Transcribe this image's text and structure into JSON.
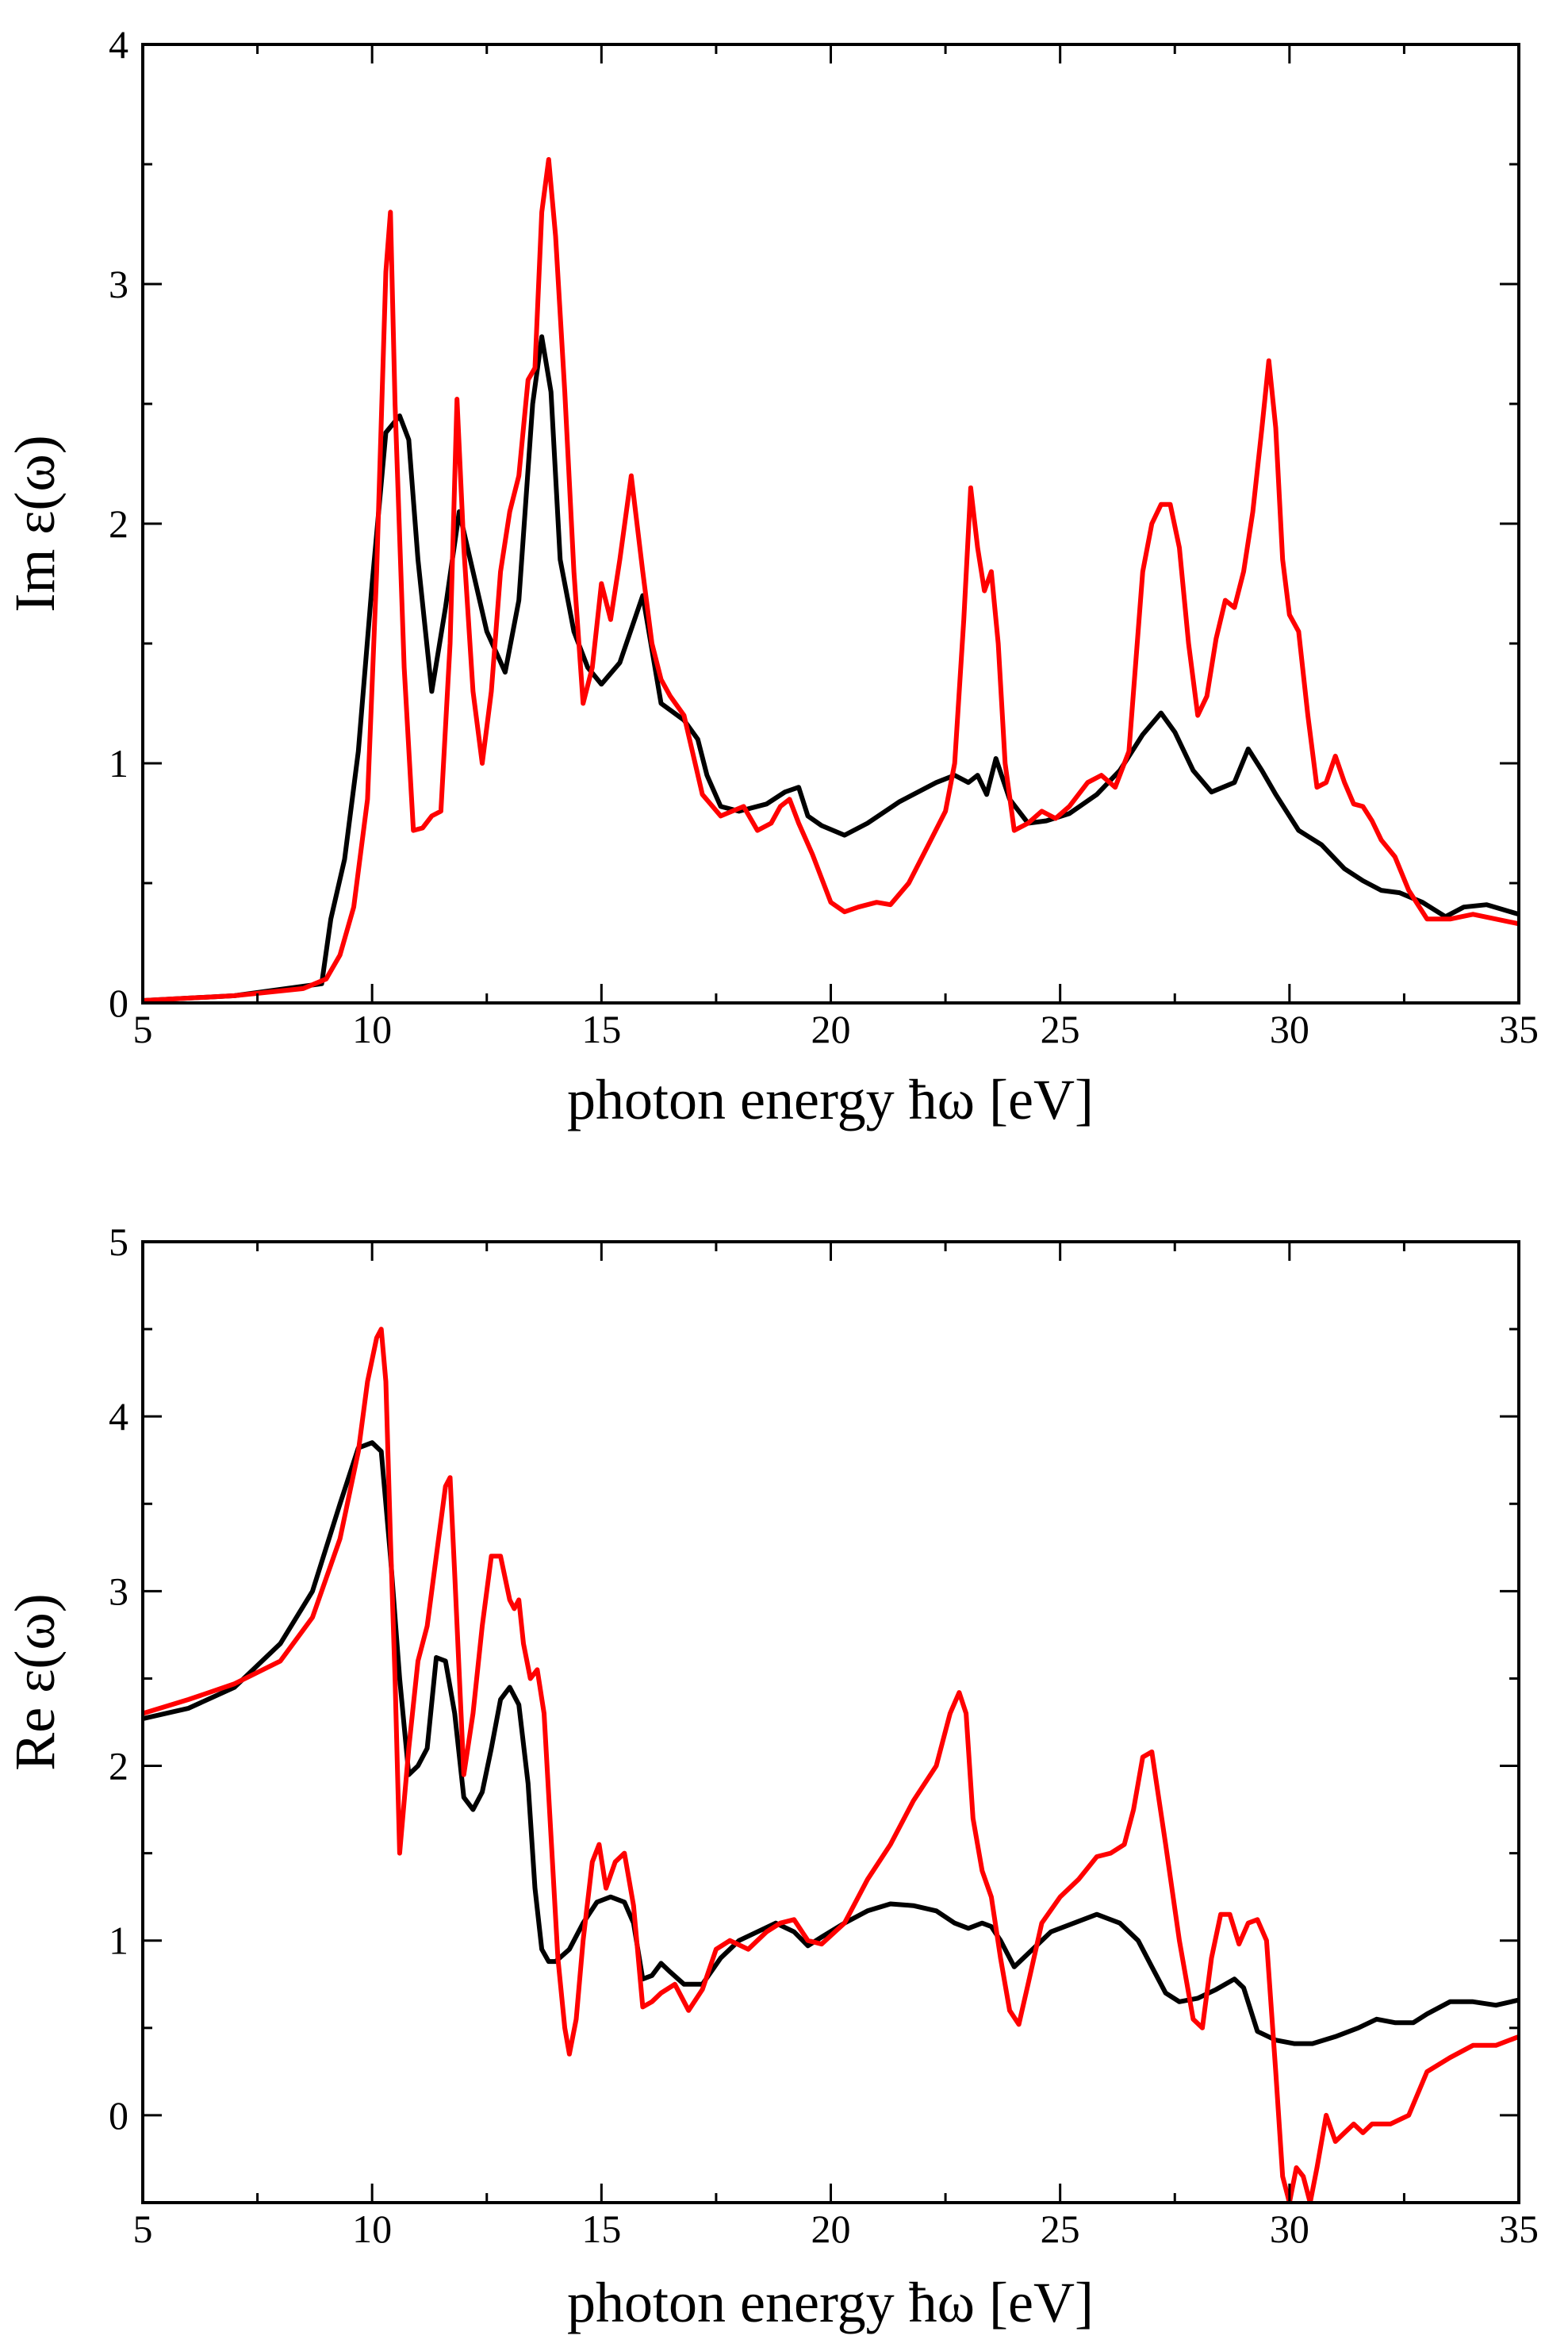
{
  "chart_data": [
    {
      "type": "line",
      "title": "",
      "xlabel": "photon energy ħω [eV]",
      "ylabel": "Im ε(ω)",
      "xlim": [
        5,
        35
      ],
      "ylim": [
        0,
        4
      ],
      "xticks": [
        5,
        10,
        15,
        20,
        25,
        30,
        35
      ],
      "yticks": [
        0,
        1,
        2,
        3,
        4
      ],
      "grid": false,
      "legend": "none",
      "series": [
        {
          "name": "black",
          "color": "#000000",
          "x": [
            5,
            7,
            8.9,
            9.1,
            9.4,
            9.7,
            10,
            10.3,
            10.6,
            10.8,
            11,
            11.3,
            11.6,
            11.9,
            12.2,
            12.5,
            12.9,
            13.2,
            13.5,
            13.7,
            13.9,
            14.1,
            14.4,
            14.7,
            15,
            15.4,
            15.9,
            16.3,
            16.8,
            17.1,
            17.3,
            17.6,
            18,
            18.6,
            19,
            19.3,
            19.5,
            19.8,
            20.3,
            20.8,
            21.5,
            22.3,
            22.7,
            23,
            23.2,
            23.4,
            23.6,
            23.9,
            24.3,
            24.7,
            25.2,
            25.8,
            26.3,
            26.8,
            27.2,
            27.5,
            27.9,
            28.3,
            28.8,
            29.1,
            29.4,
            29.7,
            30.2,
            30.7,
            31.2,
            31.6,
            32,
            32.4,
            32.9,
            33.4,
            33.8,
            34.3,
            35
          ],
          "values": [
            0.01,
            0.03,
            0.08,
            0.35,
            0.6,
            1.05,
            1.75,
            2.38,
            2.45,
            2.35,
            1.85,
            1.3,
            1.65,
            2.05,
            1.8,
            1.55,
            1.38,
            1.68,
            2.5,
            2.78,
            2.55,
            1.85,
            1.55,
            1.4,
            1.33,
            1.42,
            1.7,
            1.25,
            1.18,
            1.1,
            0.95,
            0.82,
            0.8,
            0.83,
            0.88,
            0.9,
            0.78,
            0.74,
            0.7,
            0.75,
            0.84,
            0.92,
            0.95,
            0.92,
            0.95,
            0.87,
            1.02,
            0.85,
            0.75,
            0.76,
            0.79,
            0.87,
            0.97,
            1.12,
            1.21,
            1.13,
            0.97,
            0.88,
            0.92,
            1.06,
            0.97,
            0.87,
            0.72,
            0.66,
            0.56,
            0.51,
            0.47,
            0.46,
            0.42,
            0.36,
            0.4,
            0.41,
            0.37
          ]
        },
        {
          "name": "red",
          "color": "#ff0000",
          "x": [
            5,
            7,
            8.5,
            9,
            9.3,
            9.6,
            9.9,
            10.1,
            10.3,
            10.4,
            10.5,
            10.7,
            10.9,
            11.1,
            11.3,
            11.5,
            11.7,
            11.85,
            12,
            12.2,
            12.4,
            12.6,
            12.8,
            13,
            13.2,
            13.4,
            13.55,
            13.7,
            13.85,
            14,
            14.2,
            14.4,
            14.6,
            14.8,
            15,
            15.2,
            15.4,
            15.65,
            15.9,
            16.1,
            16.3,
            16.5,
            16.8,
            17.2,
            17.6,
            18.1,
            18.4,
            18.7,
            18.9,
            19.1,
            19.3,
            19.6,
            20,
            20.3,
            20.6,
            21,
            21.3,
            21.7,
            22.1,
            22.5,
            22.7,
            22.9,
            23.05,
            23.2,
            23.35,
            23.5,
            23.65,
            23.8,
            24,
            24.3,
            24.6,
            24.9,
            25.2,
            25.6,
            25.9,
            26.2,
            26.5,
            26.8,
            27,
            27.2,
            27.4,
            27.6,
            27.8,
            28,
            28.2,
            28.4,
            28.6,
            28.8,
            29,
            29.2,
            29.4,
            29.55,
            29.7,
            29.85,
            30,
            30.2,
            30.4,
            30.6,
            30.8,
            31,
            31.2,
            31.4,
            31.6,
            31.8,
            32,
            32.3,
            32.6,
            33,
            33.5,
            34,
            34.5,
            35
          ],
          "values": [
            0.01,
            0.03,
            0.06,
            0.1,
            0.2,
            0.4,
            0.85,
            1.8,
            3.05,
            3.3,
            2.5,
            1.4,
            0.72,
            0.73,
            0.78,
            0.8,
            1.5,
            2.52,
            1.9,
            1.3,
            1.0,
            1.3,
            1.8,
            2.05,
            2.2,
            2.6,
            2.65,
            3.3,
            3.52,
            3.2,
            2.55,
            1.8,
            1.25,
            1.4,
            1.75,
            1.6,
            1.85,
            2.2,
            1.8,
            1.5,
            1.35,
            1.28,
            1.2,
            0.87,
            0.78,
            0.82,
            0.72,
            0.75,
            0.82,
            0.85,
            0.75,
            0.62,
            0.42,
            0.38,
            0.4,
            0.42,
            0.41,
            0.5,
            0.65,
            0.8,
            1.0,
            1.6,
            2.15,
            1.9,
            1.72,
            1.8,
            1.5,
            1.0,
            0.72,
            0.75,
            0.8,
            0.77,
            0.82,
            0.92,
            0.95,
            0.9,
            1.05,
            1.8,
            2.0,
            2.08,
            2.08,
            1.9,
            1.5,
            1.2,
            1.28,
            1.52,
            1.68,
            1.65,
            1.8,
            2.05,
            2.4,
            2.68,
            2.4,
            1.85,
            1.62,
            1.55,
            1.2,
            0.9,
            0.92,
            1.03,
            0.92,
            0.83,
            0.82,
            0.76,
            0.68,
            0.61,
            0.47,
            0.35,
            0.35,
            0.37,
            0.35,
            0.33
          ]
        }
      ]
    },
    {
      "type": "line",
      "title": "",
      "xlabel": "photon energy ħω [eV]",
      "ylabel": "Re ε(ω)",
      "xlim": [
        5,
        35
      ],
      "ylim": [
        -0.5,
        5
      ],
      "xticks": [
        5,
        10,
        15,
        20,
        25,
        30,
        35
      ],
      "yticks": [
        0,
        1,
        2,
        3,
        4,
        5
      ],
      "grid": false,
      "legend": "none",
      "series": [
        {
          "name": "black",
          "color": "#000000",
          "x": [
            5,
            6,
            7,
            8,
            8.7,
            9.3,
            9.7,
            10,
            10.2,
            10.4,
            10.6,
            10.8,
            11,
            11.2,
            11.4,
            11.6,
            11.8,
            12,
            12.2,
            12.4,
            12.6,
            12.8,
            13,
            13.2,
            13.4,
            13.55,
            13.7,
            13.85,
            14,
            14.3,
            14.6,
            14.9,
            15.2,
            15.5,
            15.7,
            15.9,
            16.1,
            16.3,
            16.5,
            16.8,
            17.2,
            17.6,
            18,
            18.4,
            18.8,
            19.2,
            19.5,
            19.8,
            20.3,
            20.8,
            21.3,
            21.8,
            22.3,
            22.7,
            23,
            23.3,
            23.5,
            23.7,
            24,
            24.4,
            24.8,
            25.3,
            25.8,
            26.3,
            26.7,
            27,
            27.3,
            27.6,
            28,
            28.4,
            28.8,
            29,
            29.3,
            29.7,
            30.1,
            30.5,
            31,
            31.5,
            31.9,
            32.3,
            32.7,
            33,
            33.5,
            34,
            34.5,
            35
          ],
          "values": [
            2.27,
            2.33,
            2.45,
            2.7,
            3.0,
            3.5,
            3.82,
            3.85,
            3.8,
            3.2,
            2.5,
            1.95,
            2.0,
            2.1,
            2.62,
            2.6,
            2.3,
            1.82,
            1.75,
            1.85,
            2.1,
            2.38,
            2.45,
            2.35,
            1.9,
            1.3,
            0.95,
            0.88,
            0.88,
            0.95,
            1.1,
            1.22,
            1.25,
            1.22,
            1.1,
            0.78,
            0.8,
            0.87,
            0.82,
            0.75,
            0.75,
            0.9,
            1.0,
            1.05,
            1.1,
            1.05,
            0.97,
            1.02,
            1.1,
            1.17,
            1.21,
            1.2,
            1.17,
            1.1,
            1.07,
            1.1,
            1.08,
            1.0,
            0.85,
            0.95,
            1.05,
            1.1,
            1.15,
            1.1,
            1.0,
            0.85,
            0.7,
            0.65,
            0.67,
            0.72,
            0.78,
            0.73,
            0.48,
            0.43,
            0.41,
            0.41,
            0.45,
            0.5,
            0.55,
            0.53,
            0.53,
            0.58,
            0.65,
            0.65,
            0.63,
            0.66
          ]
        },
        {
          "name": "red",
          "color": "#ff0000",
          "x": [
            5,
            6,
            7,
            8,
            8.7,
            9.3,
            9.7,
            9.9,
            10.1,
            10.2,
            10.3,
            10.4,
            10.5,
            10.6,
            10.8,
            11,
            11.2,
            11.4,
            11.6,
            11.7,
            11.8,
            12,
            12.2,
            12.4,
            12.6,
            12.8,
            13,
            13.1,
            13.2,
            13.3,
            13.45,
            13.6,
            13.75,
            13.9,
            14.05,
            14.2,
            14.3,
            14.45,
            14.6,
            14.8,
            14.95,
            15.1,
            15.3,
            15.5,
            15.7,
            15.9,
            16.1,
            16.3,
            16.6,
            16.9,
            17.2,
            17.5,
            17.8,
            18.2,
            18.6,
            18.9,
            19.2,
            19.5,
            19.8,
            20.3,
            20.8,
            21.3,
            21.8,
            22.3,
            22.6,
            22.8,
            22.95,
            23.1,
            23.3,
            23.5,
            23.7,
            23.9,
            24.1,
            24.3,
            24.6,
            25,
            25.4,
            25.8,
            26.1,
            26.4,
            26.6,
            26.8,
            27,
            27.3,
            27.6,
            27.9,
            28.1,
            28.3,
            28.5,
            28.7,
            28.9,
            29.1,
            29.3,
            29.5,
            29.7,
            29.85,
            30,
            30.15,
            30.3,
            30.45,
            30.6,
            30.8,
            31,
            31.2,
            31.4,
            31.6,
            31.8,
            32.2,
            32.6,
            33,
            33.5,
            34,
            34.5,
            35
          ],
          "values": [
            2.3,
            2.38,
            2.47,
            2.6,
            2.85,
            3.3,
            3.8,
            4.2,
            4.45,
            4.5,
            4.2,
            3.3,
            2.5,
            1.5,
            2.1,
            2.6,
            2.8,
            3.2,
            3.6,
            3.65,
            3.1,
            1.95,
            2.3,
            2.8,
            3.2,
            3.2,
            2.95,
            2.9,
            2.95,
            2.7,
            2.5,
            2.55,
            2.3,
            1.6,
            0.9,
            0.5,
            0.35,
            0.55,
            1.0,
            1.45,
            1.55,
            1.3,
            1.45,
            1.5,
            1.2,
            0.62,
            0.65,
            0.7,
            0.75,
            0.6,
            0.72,
            0.95,
            1.0,
            0.95,
            1.05,
            1.1,
            1.12,
            1.0,
            0.98,
            1.1,
            1.35,
            1.55,
            1.8,
            2.0,
            2.3,
            2.42,
            2.3,
            1.7,
            1.4,
            1.25,
            0.9,
            0.6,
            0.52,
            0.75,
            1.1,
            1.25,
            1.35,
            1.48,
            1.5,
            1.55,
            1.75,
            2.05,
            2.08,
            1.55,
            1.0,
            0.55,
            0.5,
            0.9,
            1.15,
            1.15,
            0.98,
            1.1,
            1.12,
            1.0,
            0.25,
            -0.35,
            -0.5,
            -0.3,
            -0.35,
            -0.5,
            -0.3,
            0.0,
            -0.15,
            -0.1,
            -0.05,
            -0.1,
            -0.05,
            -0.05,
            0.0,
            0.25,
            0.33,
            0.4,
            0.4,
            0.45
          ]
        }
      ]
    }
  ]
}
